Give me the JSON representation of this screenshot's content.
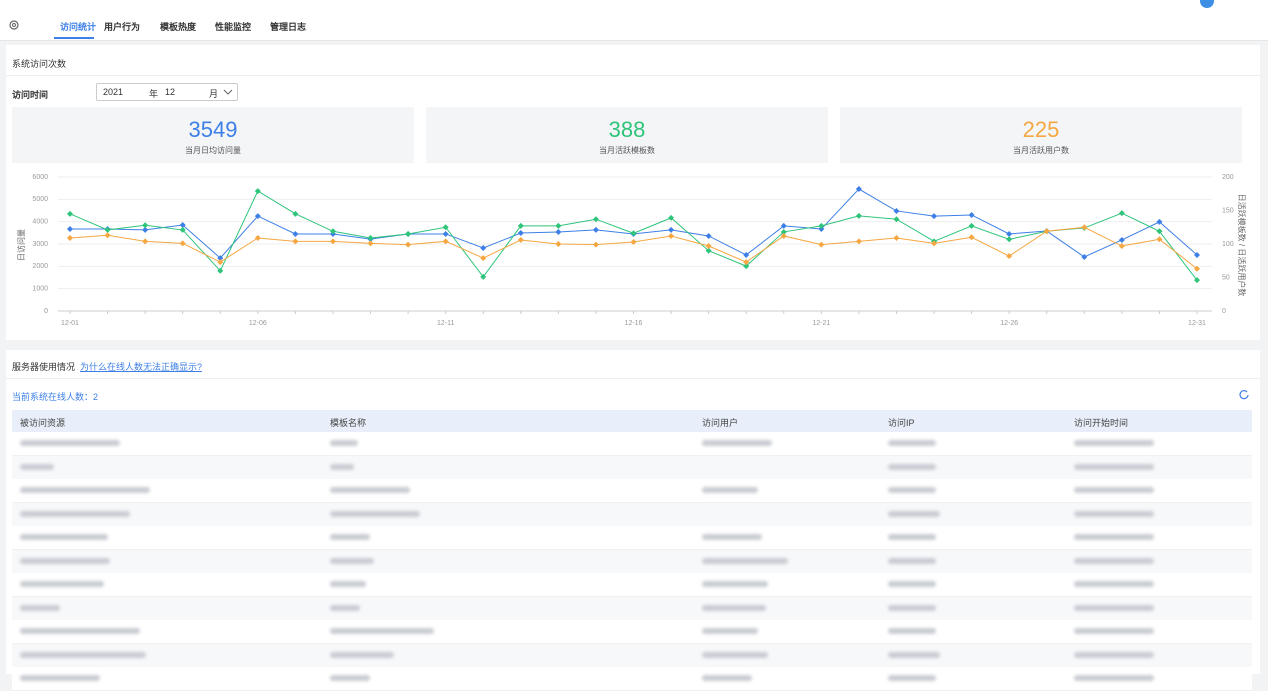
{
  "tabs": [
    "访问统计",
    "用户行为",
    "模板热度",
    "性能监控",
    "管理日志"
  ],
  "visits": {
    "title": "系统访问次数",
    "time_label": "访问时间",
    "year": "2021",
    "year_unit": "年",
    "month": "12",
    "month_unit": "月",
    "stats": [
      {
        "value": 3549,
        "label": "当月日均访问量",
        "color": "#3d7fe6"
      },
      {
        "value": 388,
        "label": "当月活跃模板数",
        "color": "#2ec47a"
      },
      {
        "value": 225,
        "label": "当月活跃用户数",
        "color": "#f5a742"
      }
    ]
  },
  "chart_data": {
    "type": "line",
    "categories": [
      "12-01",
      null,
      null,
      null,
      null,
      "12-06",
      null,
      null,
      null,
      null,
      "12-11",
      null,
      null,
      null,
      null,
      "12-16",
      null,
      null,
      null,
      null,
      "12-21",
      null,
      null,
      null,
      null,
      "12-26",
      null,
      null,
      null,
      null,
      "12-31"
    ],
    "y_label": "日访问量",
    "y2_label": "日活跃模板数 / 日活跃用户数",
    "ylim": [
      0,
      6000
    ],
    "yticks": [
      0,
      1000,
      2000,
      3000,
      4000,
      5000,
      6000
    ],
    "y2lim": [
      0,
      200
    ],
    "y2ticks": [
      0,
      50,
      100,
      150,
      200
    ],
    "grid": true,
    "series": [
      {
        "color": "#3d7fe6",
        "values": [
          3670,
          3670,
          3630,
          3850,
          2370,
          4250,
          3450,
          3450,
          3220,
          3450,
          3450,
          2820,
          3490,
          3540,
          3630,
          3450,
          3630,
          3360,
          2510,
          3810,
          3670,
          5460,
          4480,
          4250,
          4300,
          3450,
          3580,
          2420,
          3180,
          3990,
          2510
        ]
      },
      {
        "color": "#2ec47a",
        "axis": "y2",
        "values": [
          145,
          121,
          128,
          121,
          60,
          179,
          145,
          119,
          109,
          115,
          125,
          51,
          127,
          127,
          137,
          116,
          139,
          90,
          67,
          118,
          127,
          142,
          137,
          104,
          127,
          107,
          119,
          124,
          146,
          119,
          46
        ]
      },
      {
        "color": "#f5a742",
        "axis": "y2",
        "values": [
          109,
          113,
          104,
          101,
          73,
          109,
          104,
          104,
          101,
          99,
          104,
          79,
          106,
          100,
          99,
          103,
          112,
          97,
          73,
          112,
          99,
          104,
          109,
          101,
          110,
          82,
          119,
          125,
          97,
          107,
          63
        ]
      }
    ]
  },
  "server": {
    "title": "服务器使用情况",
    "link": "为什么在线人数无法正确显示?",
    "online": "当前系统在线人数：2",
    "columns": [
      "被访问资源",
      "模板名称",
      "访问用户",
      "访问IP",
      "访问开始时间"
    ]
  }
}
